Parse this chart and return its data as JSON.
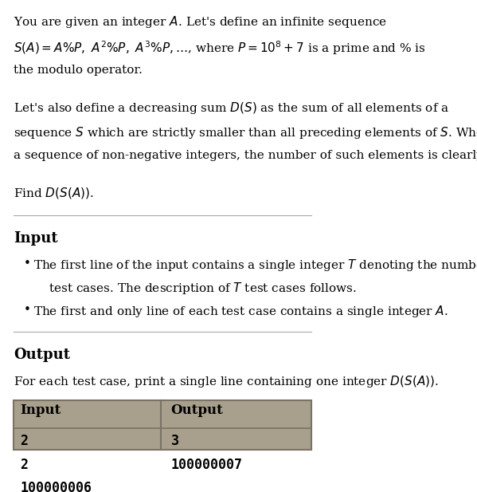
{
  "background_color": "#ffffff",
  "text_color": "#000000",
  "table_bg_color": "#a89f8c",
  "table_border_color": "#7a7264",
  "section_input": "Input",
  "section_output": "Output",
  "table_input_header": "Input",
  "table_output_header": "Output",
  "table_input_rows": [
    "2",
    "2",
    "100000006"
  ],
  "table_output_rows": [
    "3",
    "100000007"
  ],
  "body_fontsize": 11,
  "section_fontsize": 13,
  "table_fontsize": 12
}
